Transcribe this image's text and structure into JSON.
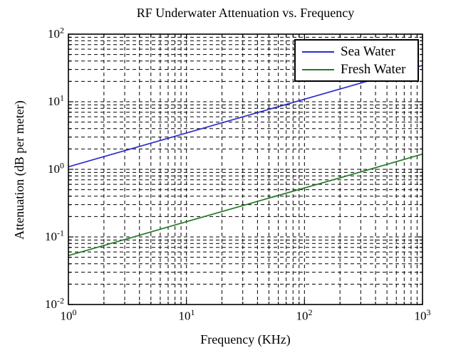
{
  "chart_data": {
    "type": "line",
    "title": "RF Underwater Attenuation vs. Frequency",
    "xlabel": "Frequency (KHz)",
    "ylabel": "Attenuation (dB per meter)",
    "x_scale": "log",
    "y_scale": "log",
    "xlim": [
      1,
      1000
    ],
    "ylim": [
      0.01,
      100
    ],
    "grid": "major and minor gridlines, black dashed",
    "legend_position": "top-right inside plot",
    "background_color": "#ffffff",
    "grid_color": "#000000",
    "x_ticks": [
      {
        "base": "10",
        "exp": "0"
      },
      {
        "base": "10",
        "exp": "1"
      },
      {
        "base": "10",
        "exp": "2"
      },
      {
        "base": "10",
        "exp": "3"
      }
    ],
    "y_ticks": [
      {
        "base": "10",
        "exp": "2"
      },
      {
        "base": "10",
        "exp": "1"
      },
      {
        "base": "10",
        "exp": "0"
      },
      {
        "base": "10",
        "exp": "-1"
      },
      {
        "base": "10",
        "exp": "-2"
      }
    ],
    "x": [
      1,
      3.16,
      10,
      31.6,
      100,
      316,
      1000
    ],
    "series": [
      {
        "name": "Sea Water",
        "color": "#2b2bd0",
        "values": [
          1.09,
          1.94,
          3.45,
          6.13,
          10.9,
          19.4,
          34.5
        ]
      },
      {
        "name": "Fresh Water",
        "color": "#217a21",
        "values": [
          0.053,
          0.094,
          0.168,
          0.298,
          0.53,
          0.94,
          1.68
        ]
      }
    ]
  }
}
